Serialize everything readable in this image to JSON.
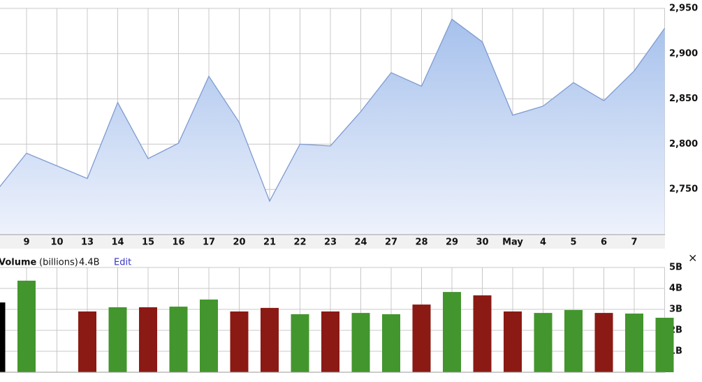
{
  "chart_data": [
    {
      "type": "area",
      "categories": [
        null,
        "9",
        "10",
        "13",
        "14",
        "15",
        "16",
        "17",
        "20",
        "21",
        "22",
        "23",
        "24",
        "27",
        "28",
        "29",
        "30",
        "May",
        "4",
        "5",
        "6",
        "7",
        null
      ],
      "values": [
        2748,
        2790,
        2776,
        2762,
        2846,
        2784,
        2801,
        2875,
        2824,
        2737,
        2800,
        2798,
        2836,
        2879,
        2864,
        2938,
        2913,
        2832,
        2842,
        2868,
        2848,
        2881,
        2928
      ],
      "color": "#7f9bd0",
      "ylim": [
        2700,
        2950
      ],
      "yticks": [
        {
          "value": 2750,
          "label": "2,750"
        },
        {
          "value": 2800,
          "label": "2,800"
        },
        {
          "value": 2850,
          "label": "2,850"
        },
        {
          "value": 2900,
          "label": "2,900"
        },
        {
          "value": 2950,
          "label": "2,950"
        }
      ],
      "grid": true
    },
    {
      "type": "bar",
      "title": "Volume",
      "subtitle": "(billions)",
      "latest_label": "4.4B",
      "values": [
        3.33,
        4.37,
        null,
        2.9,
        3.1,
        3.1,
        3.13,
        3.47,
        2.9,
        3.07,
        2.77,
        2.9,
        2.83,
        2.77,
        3.23,
        3.83,
        3.67,
        2.9,
        2.83,
        2.97,
        2.83,
        2.8,
        2.6
      ],
      "colors": [
        "#000000",
        "#43962d",
        null,
        "#8b1a14",
        "#43962d",
        "#8b1a14",
        "#43962d",
        "#43962d",
        "#8b1a14",
        "#8b1a14",
        "#43962d",
        "#8b1a14",
        "#43962d",
        "#43962d",
        "#8b1a14",
        "#43962d",
        "#8b1a14",
        "#8b1a14",
        "#43962d",
        "#43962d",
        "#8b1a14",
        "#43962d",
        "#43962d"
      ],
      "ylim": [
        0,
        5
      ],
      "yticks": [
        {
          "value": 1,
          "label": "1B"
        },
        {
          "value": 2,
          "label": "2B"
        },
        {
          "value": 3,
          "label": "3B"
        },
        {
          "value": 4,
          "label": "4B"
        },
        {
          "value": 5,
          "label": "5B"
        }
      ],
      "grid": true
    }
  ],
  "ui": {
    "edit": "Edit",
    "close": "×"
  }
}
